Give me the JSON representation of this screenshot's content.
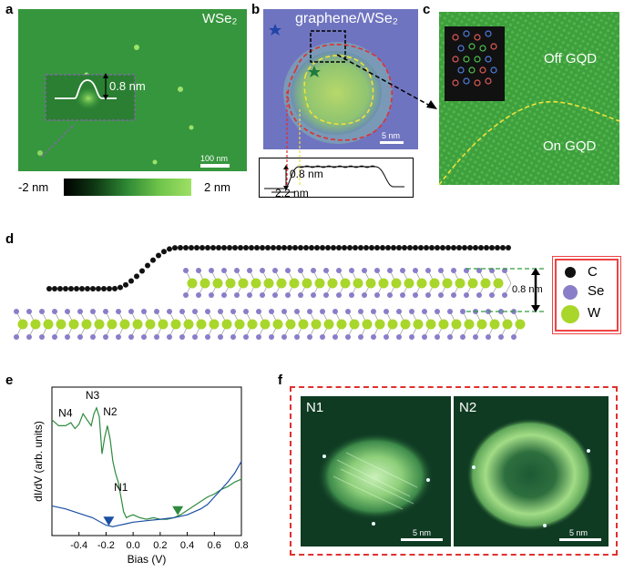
{
  "panels": {
    "a": {
      "label": "a",
      "material": "WSe₂",
      "height_label": "0.8 nm",
      "scalebar": "100 nm",
      "colorbar_min": "-2 nm",
      "colorbar_max": "2 nm"
    },
    "b": {
      "label": "b",
      "title": "graphene/WSe₂",
      "scalebar": "5 nm",
      "profile_height": "0.8 nm",
      "profile_width": "2.2 nm"
    },
    "c": {
      "label": "c",
      "off_label": "Off GQD",
      "on_label": "On GQD"
    },
    "d": {
      "label": "d",
      "gap_label": "0.8 nm",
      "legend": [
        {
          "atom": "C",
          "color": "#111111"
        },
        {
          "atom": "Se",
          "color": "#8a7ec9"
        },
        {
          "atom": "W",
          "color": "#a9d62b"
        }
      ]
    },
    "e": {
      "label": "e",
      "peaks": [
        "N4",
        "N3",
        "N2",
        "N1"
      ]
    },
    "f": {
      "label": "f",
      "images": [
        {
          "title": "N1",
          "scalebar": "5 nm"
        },
        {
          "title": "N2",
          "scalebar": "5 nm"
        }
      ]
    }
  },
  "chart_data": {
    "type": "line",
    "xlabel": "Bias (V)",
    "ylabel": "dI/dV (arb. units)",
    "xlim": [
      -0.6,
      0.8
    ],
    "xticks": [
      "-0.4",
      "-0.2",
      "0.0",
      "0.2",
      "0.4",
      "0.6",
      "0.8"
    ],
    "xtick_values": [
      -0.4,
      -0.2,
      0.0,
      0.2,
      0.4,
      0.6,
      0.8
    ],
    "ylim": [
      0,
      1
    ],
    "series": [
      {
        "color": "#2e8b3e",
        "x": [
          -0.6,
          -0.55,
          -0.5,
          -0.46,
          -0.43,
          -0.4,
          -0.37,
          -0.34,
          -0.31,
          -0.29,
          -0.27,
          -0.25,
          -0.23,
          -0.21,
          -0.19,
          -0.17,
          -0.15,
          -0.13,
          -0.11,
          -0.09,
          -0.07,
          -0.05,
          -0.03,
          0.0,
          0.05,
          0.1,
          0.15,
          0.2,
          0.25,
          0.3,
          0.35,
          0.4,
          0.45,
          0.5,
          0.55,
          0.6,
          0.65,
          0.7,
          0.75,
          0.8
        ],
        "y": [
          0.78,
          0.74,
          0.74,
          0.76,
          0.72,
          0.75,
          0.82,
          0.78,
          0.74,
          0.82,
          0.86,
          0.8,
          0.55,
          0.66,
          0.74,
          0.65,
          0.5,
          0.42,
          0.36,
          0.26,
          0.16,
          0.12,
          0.13,
          0.14,
          0.12,
          0.11,
          0.12,
          0.11,
          0.11,
          0.12,
          0.14,
          0.17,
          0.2,
          0.23,
          0.26,
          0.28,
          0.31,
          0.33,
          0.36,
          0.38
        ]
      },
      {
        "color": "#1a4fa3",
        "x": [
          -0.6,
          -0.5,
          -0.4,
          -0.3,
          -0.2,
          -0.15,
          -0.1,
          -0.05,
          0.0,
          0.1,
          0.2,
          0.3,
          0.4,
          0.5,
          0.55,
          0.6,
          0.65,
          0.7,
          0.75,
          0.8
        ],
        "y": [
          0.2,
          0.18,
          0.15,
          0.12,
          0.07,
          0.06,
          0.07,
          0.08,
          0.09,
          0.1,
          0.11,
          0.12,
          0.14,
          0.18,
          0.21,
          0.26,
          0.31,
          0.36,
          0.42,
          0.5
        ]
      }
    ],
    "markers": [
      {
        "x": -0.18,
        "y": 0.06,
        "color": "#1a4fa3"
      },
      {
        "x": 0.33,
        "y": 0.13,
        "color": "#2e8b3e"
      }
    ]
  }
}
